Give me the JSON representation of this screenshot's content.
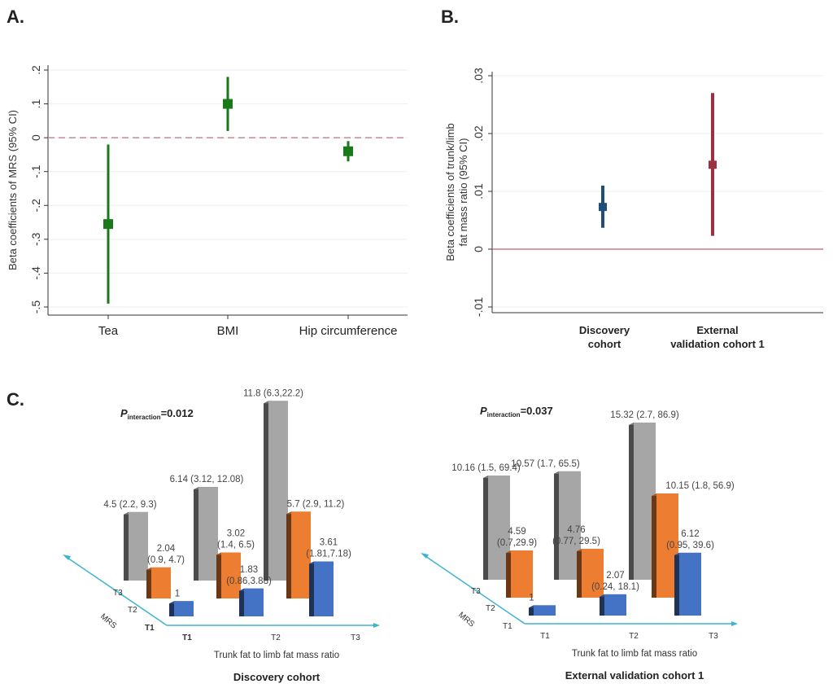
{
  "panels": {
    "a_label": "A.",
    "b_label": "B.",
    "c_label": "C."
  },
  "chart_data": [
    {
      "id": "A",
      "type": "scatter",
      "subtype": "coefficient-plot",
      "title": "",
      "xlabel": "",
      "ylabel": "Beta coefficients of MRS (95% CI)",
      "categories": [
        "Tea",
        "BMI",
        "Hip circumference"
      ],
      "estimates": [
        -0.255,
        0.1,
        -0.04
      ],
      "ci_lower": [
        -0.49,
        0.02,
        -0.07
      ],
      "ci_upper": [
        -0.02,
        0.18,
        -0.01
      ],
      "ylim": [
        -0.5,
        0.2
      ],
      "yticks": [
        0.2,
        0.1,
        0,
        -0.1,
        -0.2,
        -0.3,
        -0.4,
        -0.5
      ],
      "ytick_labels": [
        ".2",
        ".1",
        "0",
        "-.1",
        "-.2",
        "-.3",
        "-.4",
        "-.5"
      ],
      "reference_line": {
        "y": 0,
        "style": "dashed"
      },
      "grid": true,
      "colors": {
        "marker": "#1a7a1a",
        "reference": "#c48a95"
      }
    },
    {
      "id": "B",
      "type": "scatter",
      "subtype": "coefficient-plot",
      "title": "",
      "xlabel": "",
      "ylabel_line1": "Beta coefficients of trunk/limb",
      "ylabel_line2": "fat mass ratio  (95% CI)",
      "categories": [
        {
          "line1": "Discovery",
          "line2": "cohort"
        },
        {
          "line1": "External",
          "line2": "validation cohort 1"
        }
      ],
      "estimates": [
        0.0073,
        0.0146
      ],
      "ci_lower": [
        0.0037,
        0.0023
      ],
      "ci_upper": [
        0.011,
        0.027
      ],
      "ylim": [
        -0.01,
        0.03
      ],
      "yticks": [
        0.03,
        0.02,
        0.01,
        0,
        -0.01
      ],
      "ytick_labels": [
        ".03",
        ".02",
        ".01",
        "0",
        "-.01"
      ],
      "reference_line": {
        "y": 0,
        "style": "solid"
      },
      "grid": true,
      "colors": {
        "series": [
          "#1f4e79",
          "#9b3040"
        ],
        "reference": "#c46070"
      }
    },
    {
      "id": "C-discovery",
      "type": "bar",
      "subtype": "3d-grouped",
      "title": "Discovery cohort",
      "xlabel": "Trunk fat to limb fat mass ratio",
      "ylabel": "MRS",
      "p_interaction_prefix": "P",
      "p_interaction_sub": "interaction",
      "p_interaction_value": "=0.012",
      "x_categories": [
        "T1",
        "T2",
        "T3"
      ],
      "depth_categories": [
        "T1",
        "T2",
        "T3"
      ],
      "series": [
        {
          "name": "MRS T3",
          "color": "#a6a6a6",
          "values": [
            4.5,
            6.14,
            11.8
          ],
          "labels": [
            "4.5 (2.2, 9.3)",
            "6.14 (3.12, 12.08)",
            "11.8 (6.3,22.2)"
          ]
        },
        {
          "name": "MRS T2",
          "color": "#ed7d31",
          "values": [
            2.04,
            3.02,
            5.7
          ],
          "labels": [
            [
              "2.04",
              "(0.9, 4.7)"
            ],
            [
              "3.02",
              "(1.4, 6.5)"
            ],
            [
              "5.7 (2.9, 11.2)"
            ]
          ]
        },
        {
          "name": "MRS T1",
          "color": "#4472c4",
          "values": [
            1,
            1.83,
            3.61
          ],
          "labels": [
            [
              "1"
            ],
            [
              "1.83",
              "(0.86,3.88)"
            ],
            [
              "3.61",
              "(1.81,7.18)"
            ]
          ]
        }
      ]
    },
    {
      "id": "C-external",
      "type": "bar",
      "subtype": "3d-grouped",
      "title": "External validation cohort 1",
      "xlabel": "Trunk fat to limb fat mass ratio",
      "ylabel": "MRS",
      "p_interaction_prefix": "P",
      "p_interaction_sub": "interaction",
      "p_interaction_value": "=0.037",
      "x_categories": [
        "T1",
        "T2",
        "T3"
      ],
      "depth_categories": [
        "T1",
        "T2",
        "T3"
      ],
      "series": [
        {
          "name": "MRS T3",
          "color": "#a6a6a6",
          "values": [
            10.16,
            10.57,
            15.32
          ],
          "labels": [
            "10.16 (1.5, 69.4)",
            "10.57 (1.7, 65.5)",
            "15.32 (2.7, 86.9)"
          ]
        },
        {
          "name": "MRS T2",
          "color": "#ed7d31",
          "values": [
            4.59,
            4.76,
            10.15
          ],
          "labels": [
            [
              "4.59",
              "(0.7,29.9)"
            ],
            [
              "4.76",
              "(0.77, 29.5)"
            ],
            [
              "10.15 (1.8, 56.9)"
            ]
          ]
        },
        {
          "name": "MRS T1",
          "color": "#4472c4",
          "values": [
            1,
            2.07,
            6.12
          ],
          "labels": [
            [
              "1"
            ],
            [
              "2.07",
              "(0.24, 18.1)"
            ],
            [
              "6.12",
              "(0.95, 39.6)"
            ]
          ]
        }
      ]
    }
  ]
}
